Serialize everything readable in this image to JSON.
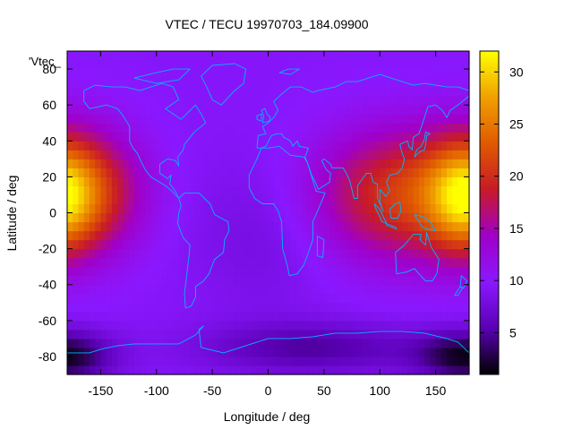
{
  "chart_data": {
    "type": "heatmap",
    "title": "VTEC / TECU 19970703_184.09900",
    "xlabel": "Longitude / deg",
    "ylabel": "Latitude / deg",
    "key_label": "'Vtec_",
    "xlim": [
      -180,
      180
    ],
    "ylim": [
      -90,
      90
    ],
    "x_ticks": [
      -150,
      -100,
      -50,
      0,
      50,
      100,
      150
    ],
    "y_ticks": [
      -80,
      -60,
      -40,
      -20,
      0,
      20,
      40,
      60,
      80
    ],
    "colorbar": {
      "range": [
        1,
        32
      ],
      "ticks": [
        5,
        10,
        15,
        20,
        25,
        30
      ],
      "palette": [
        "#000000",
        "#5a00b4",
        "#8a18ff",
        "#a000c8",
        "#c81a28",
        "#e05a00",
        "#f0a000",
        "#ffff00"
      ]
    },
    "grid": false,
    "coastlines": true,
    "coastline_color": "#00b4ff",
    "field_description_blobs": [
      {
        "lon": -170,
        "lat": 12,
        "vtec": 21,
        "sx": 38,
        "sy": 24
      },
      {
        "lon": 115,
        "lat": 10,
        "vtec": 20,
        "sx": 55,
        "sy": 26
      },
      {
        "lon": 175,
        "lat": 8,
        "vtec": 17,
        "sx": 20,
        "sy": 20
      }
    ],
    "field_background_vtec": 9.5,
    "field_low_regions": [
      {
        "lon": 40,
        "lat": -75,
        "vtec": 3,
        "sx": 70,
        "sy": 10
      },
      {
        "lon": -175,
        "lat": -80,
        "vtec": 4,
        "sx": 30,
        "sy": 10
      },
      {
        "lon": 170,
        "lat": -80,
        "vtec": 4,
        "sx": 30,
        "sy": 10
      },
      {
        "lon": 0,
        "lat": -10,
        "vtec": 7,
        "sx": 45,
        "sy": 30
      }
    ]
  }
}
